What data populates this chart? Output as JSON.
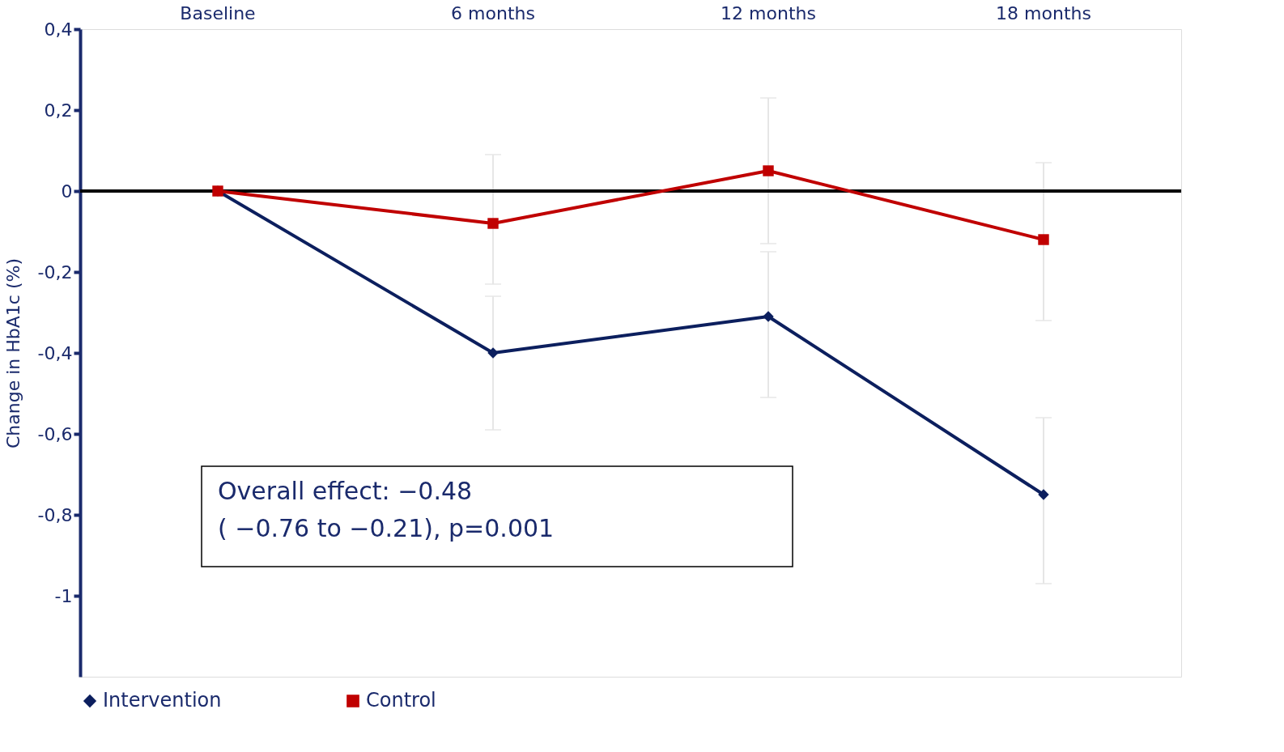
{
  "chart_data": {
    "type": "line",
    "categories": [
      "Baseline",
      "6 months",
      "12 months",
      "18 months"
    ],
    "ylabel": "Change in HbA1c (%)",
    "series": [
      {
        "name": "Intervention",
        "color": "#0c1f5e",
        "marker": "diamond",
        "values": [
          0,
          -0.4,
          -0.31,
          -0.75
        ],
        "errors": [
          null,
          [
            -0.59,
            -0.26
          ],
          [
            -0.51,
            -0.15
          ],
          [
            -0.97,
            -0.56
          ]
        ]
      },
      {
        "name": "Control",
        "color": "#c00000",
        "marker": "square",
        "values": [
          0,
          -0.08,
          0.05,
          -0.12
        ],
        "errors": [
          null,
          [
            -0.23,
            0.09
          ],
          [
            -0.13,
            0.23
          ],
          [
            -0.32,
            0.07
          ]
        ]
      }
    ],
    "ylim": [
      -1.2,
      0.4
    ],
    "yticks": [
      {
        "value": 0.4,
        "label": "0,4"
      },
      {
        "value": 0.2,
        "label": "0,2"
      },
      0,
      {
        "value": -0.2,
        "label": "-0,2"
      },
      {
        "value": -0.4,
        "label": "-0,4"
      },
      {
        "value": -0.6,
        "label": "-0,6"
      },
      {
        "value": -0.8,
        "label": "-0,8"
      },
      -1
    ],
    "ref_lines": [
      {
        "axis": "y",
        "value": 0,
        "color": "#000000"
      }
    ],
    "annotations": [
      "Overall effect: −0.48",
      "( −0.76 to −0.21), p=0.001"
    ],
    "legend": "bottom",
    "grid": false
  }
}
